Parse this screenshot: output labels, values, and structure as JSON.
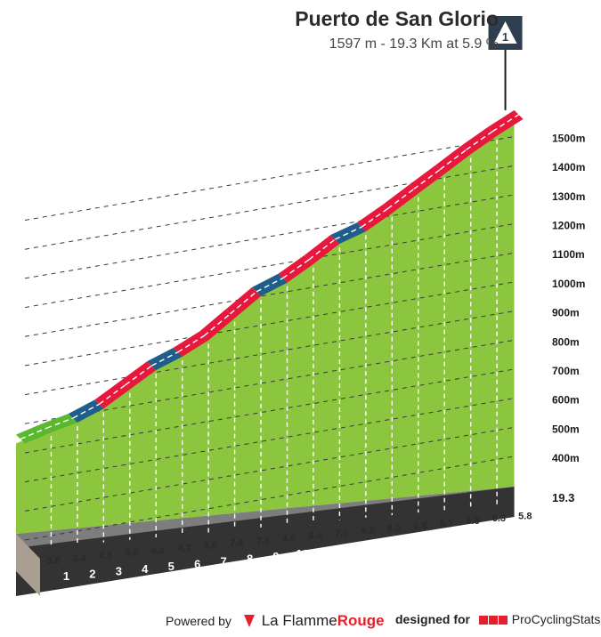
{
  "title": "Puerto de San Glorio",
  "subtitle": "1597 m - 19.3 Km at 5.9 %",
  "summit_icon": "mountain-summit-icon",
  "footer": {
    "powered_by": "Powered by",
    "brand_first": "La Flamme",
    "brand_second": "Rouge",
    "designed_for": "designed for",
    "pcs": "ProCyclingStats"
  },
  "colors": {
    "fill": "#8cc63f",
    "easy": "#5ab82f",
    "moderate": "#1f5e8a",
    "hard": "#e8173c",
    "base": "#333333",
    "start": "#a89f92"
  },
  "chart_data": {
    "type": "area",
    "title": "Puerto de San Glorio",
    "subtitle": "1597 m - 19.3 Km at 5.9 %",
    "x_unit": "km",
    "y_unit": "m",
    "total_distance": 19.3,
    "total_distance_label": "19.3",
    "altitude_ticks": [
      400,
      500,
      600,
      700,
      800,
      900,
      1000,
      1100,
      1200,
      1300,
      1400,
      1500
    ],
    "altitude_tick_labels": [
      "400m",
      "500m",
      "600m",
      "700m",
      "800m",
      "900m",
      "1000m",
      "1100m",
      "1200m",
      "1300m",
      "1400m",
      "1500m"
    ],
    "km_labels": [
      "1",
      "2",
      "3",
      "4",
      "5",
      "6",
      "7",
      "8",
      "9",
      "10",
      "11",
      "12",
      "13",
      "14",
      "15",
      "16",
      "17",
      "18"
    ],
    "segment_gradients": [
      3.8,
      3.4,
      4.8,
      6.6,
      6.6,
      4.7,
      5.6,
      7.6,
      7.6,
      4.6,
      6.4,
      7.0,
      4.2,
      6.3,
      6.8,
      6.7,
      6.8,
      6.3,
      5.8
    ],
    "segment_gradient_labels": [
      "3.8",
      "3.4",
      "4.8",
      "6.6",
      "6.6",
      "4.7",
      "5.6",
      "7.6",
      "7.6",
      "4.6",
      "6.4",
      "7.0",
      "4.2",
      "6.3",
      "6.8",
      "6.7",
      "6.8",
      "6.3",
      "5.8"
    ],
    "summit_altitude": 1597,
    "grid": true
  }
}
